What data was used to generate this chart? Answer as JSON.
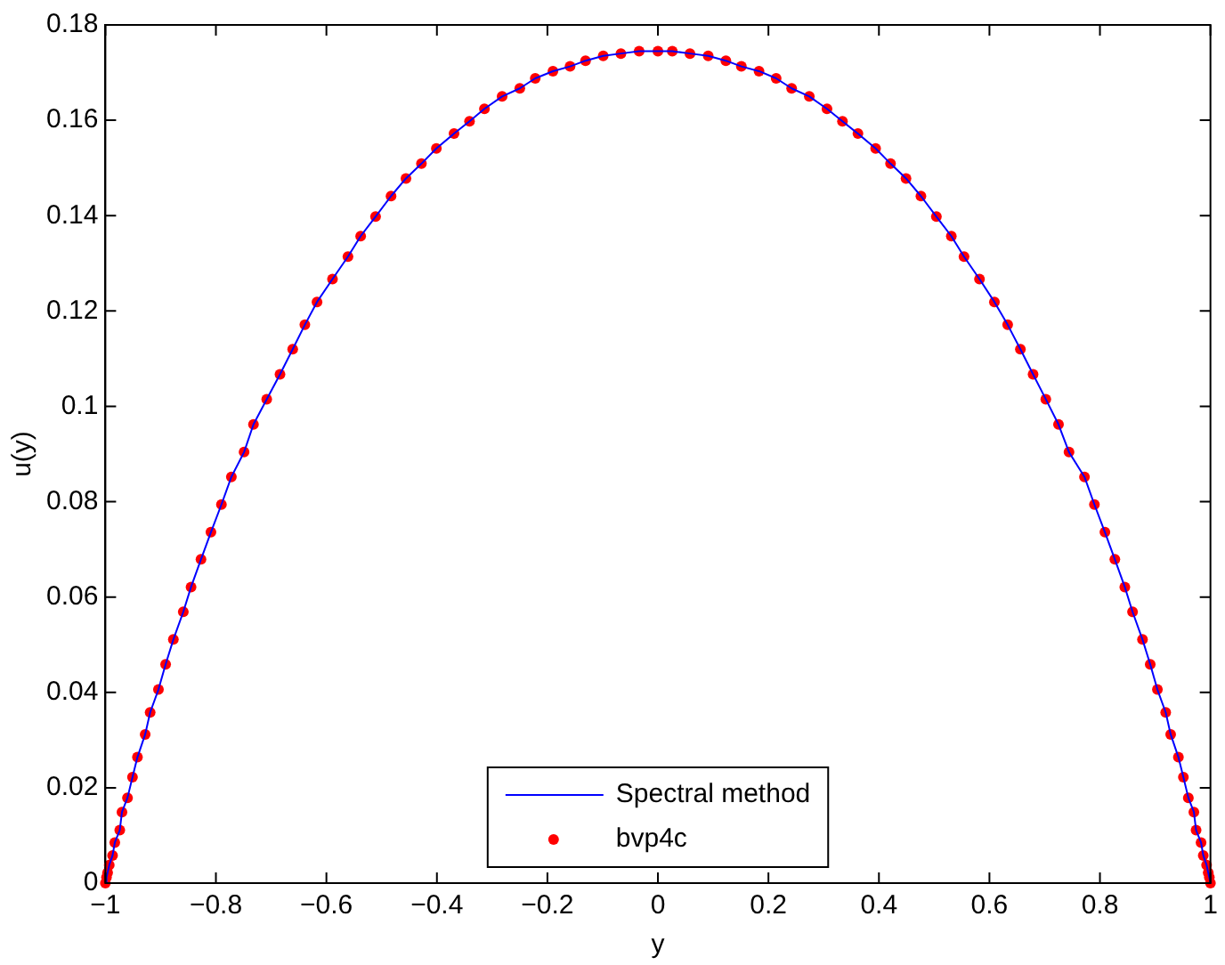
{
  "chart_data": {
    "type": "line",
    "xlabel": "y",
    "ylabel": "u(y)",
    "xlim": [
      -1,
      1
    ],
    "ylim": [
      0,
      0.18
    ],
    "xticks": [
      {
        "value": -1,
        "label": "−1"
      },
      {
        "value": -0.8,
        "label": "−0.8"
      },
      {
        "value": -0.6,
        "label": "−0.6"
      },
      {
        "value": -0.4,
        "label": "−0.4"
      },
      {
        "value": -0.2,
        "label": "−0.2"
      },
      0,
      0.2,
      0.4,
      0.6,
      0.8,
      1
    ],
    "yticks": [
      0,
      0.02,
      0.04,
      0.06,
      0.08,
      0.1,
      0.12,
      0.14,
      0.16,
      0.18
    ],
    "grid": false,
    "legend": "bottom",
    "series": [
      {
        "name": "Spectral method",
        "color": "#0000ff",
        "marker": "none",
        "line_style": "solid",
        "x": [
          -1,
          -0.998,
          -0.996,
          -0.993,
          -0.987,
          -0.983,
          -0.974,
          -0.97,
          -0.96,
          -0.951,
          -0.942,
          -0.928,
          -0.919,
          -0.904,
          -0.891,
          -0.877,
          -0.859,
          -0.845,
          -0.827,
          -0.809,
          -0.79,
          -0.772,
          -0.749,
          -0.732,
          -0.708,
          -0.684,
          -0.661,
          -0.639,
          -0.617,
          -0.589,
          -0.561,
          -0.538,
          -0.511,
          -0.483,
          -0.456,
          -0.428,
          -0.401,
          -0.369,
          -0.341,
          -0.314,
          -0.282,
          -0.25,
          -0.222,
          -0.19,
          -0.159,
          -0.131,
          -0.099,
          -0.067,
          -0.034,
          0,
          0.026,
          0.058,
          0.091,
          0.123,
          0.151,
          0.183,
          0.214,
          0.242,
          0.274,
          0.306,
          0.334,
          0.362,
          0.394,
          0.421,
          0.449,
          0.476,
          0.504,
          0.531,
          0.554,
          0.582,
          0.609,
          0.633,
          0.656,
          0.679,
          0.702,
          0.725,
          0.744,
          0.772,
          0.79,
          0.809,
          0.827,
          0.845,
          0.859,
          0.877,
          0.891,
          0.904,
          0.919,
          0.928,
          0.942,
          0.951,
          0.96,
          0.97,
          0.974,
          0.983,
          0.987,
          0.993,
          0.996,
          0.998,
          1
        ],
        "values": [
          0,
          0.0012,
          0.0022,
          0.0038,
          0.0058,
          0.0085,
          0.0111,
          0.0149,
          0.0179,
          0.0222,
          0.0264,
          0.0312,
          0.0358,
          0.0406,
          0.0459,
          0.0511,
          0.0569,
          0.0621,
          0.0679,
          0.0736,
          0.0794,
          0.0852,
          0.0904,
          0.0962,
          0.1015,
          0.1067,
          0.112,
          0.1171,
          0.1219,
          0.1267,
          0.1314,
          0.1357,
          0.1398,
          0.1441,
          0.1478,
          0.1509,
          0.1541,
          0.1572,
          0.1598,
          0.1624,
          0.165,
          0.1667,
          0.1688,
          0.1703,
          0.1713,
          0.1725,
          0.1735,
          0.174,
          0.1745,
          0.1745,
          0.1745,
          0.174,
          0.1735,
          0.1725,
          0.1713,
          0.1703,
          0.1688,
          0.1667,
          0.165,
          0.1624,
          0.1598,
          0.1572,
          0.1541,
          0.1509,
          0.1478,
          0.1441,
          0.1398,
          0.1357,
          0.1314,
          0.1267,
          0.1219,
          0.1171,
          0.112,
          0.1067,
          0.1015,
          0.0962,
          0.0904,
          0.0852,
          0.0794,
          0.0736,
          0.0679,
          0.0621,
          0.0569,
          0.0511,
          0.0459,
          0.0406,
          0.0358,
          0.0312,
          0.0264,
          0.0222,
          0.0179,
          0.0149,
          0.0111,
          0.0085,
          0.0058,
          0.0038,
          0.0022,
          0.0012,
          0
        ]
      },
      {
        "name": "bvp4c",
        "type": "scatter",
        "color": "#ff0000",
        "marker": "circle",
        "x": [
          -1,
          -0.998,
          -0.996,
          -0.993,
          -0.987,
          -0.983,
          -0.974,
          -0.97,
          -0.96,
          -0.951,
          -0.942,
          -0.928,
          -0.919,
          -0.904,
          -0.891,
          -0.877,
          -0.859,
          -0.845,
          -0.827,
          -0.809,
          -0.79,
          -0.772,
          -0.749,
          -0.732,
          -0.708,
          -0.684,
          -0.661,
          -0.639,
          -0.617,
          -0.589,
          -0.561,
          -0.538,
          -0.511,
          -0.483,
          -0.456,
          -0.428,
          -0.401,
          -0.369,
          -0.341,
          -0.314,
          -0.282,
          -0.25,
          -0.222,
          -0.19,
          -0.159,
          -0.131,
          -0.099,
          -0.067,
          -0.034,
          0,
          0.026,
          0.058,
          0.091,
          0.123,
          0.151,
          0.183,
          0.214,
          0.242,
          0.274,
          0.306,
          0.334,
          0.362,
          0.394,
          0.421,
          0.449,
          0.476,
          0.504,
          0.531,
          0.554,
          0.582,
          0.609,
          0.633,
          0.656,
          0.679,
          0.702,
          0.725,
          0.744,
          0.772,
          0.79,
          0.809,
          0.827,
          0.845,
          0.859,
          0.877,
          0.891,
          0.904,
          0.919,
          0.928,
          0.942,
          0.951,
          0.96,
          0.97,
          0.974,
          0.983,
          0.987,
          0.993,
          0.996,
          0.998,
          1
        ],
        "values": [
          0,
          0.0012,
          0.0022,
          0.0038,
          0.0058,
          0.0085,
          0.0111,
          0.0149,
          0.0179,
          0.0222,
          0.0264,
          0.0312,
          0.0358,
          0.0406,
          0.0459,
          0.0511,
          0.0569,
          0.0621,
          0.0679,
          0.0736,
          0.0794,
          0.0852,
          0.0904,
          0.0962,
          0.1015,
          0.1067,
          0.112,
          0.1171,
          0.1219,
          0.1267,
          0.1314,
          0.1357,
          0.1398,
          0.1441,
          0.1478,
          0.1509,
          0.1541,
          0.1572,
          0.1598,
          0.1624,
          0.165,
          0.1667,
          0.1688,
          0.1703,
          0.1713,
          0.1725,
          0.1735,
          0.174,
          0.1745,
          0.1745,
          0.1745,
          0.174,
          0.1735,
          0.1725,
          0.1713,
          0.1703,
          0.1688,
          0.1667,
          0.165,
          0.1624,
          0.1598,
          0.1572,
          0.1541,
          0.1509,
          0.1478,
          0.1441,
          0.1398,
          0.1357,
          0.1314,
          0.1267,
          0.1219,
          0.1171,
          0.112,
          0.1067,
          0.1015,
          0.0962,
          0.0904,
          0.0852,
          0.0794,
          0.0736,
          0.0679,
          0.0621,
          0.0569,
          0.0511,
          0.0459,
          0.0406,
          0.0358,
          0.0312,
          0.0264,
          0.0222,
          0.0179,
          0.0149,
          0.0111,
          0.0085,
          0.0058,
          0.0038,
          0.0022,
          0.0012,
          0
        ]
      }
    ]
  }
}
